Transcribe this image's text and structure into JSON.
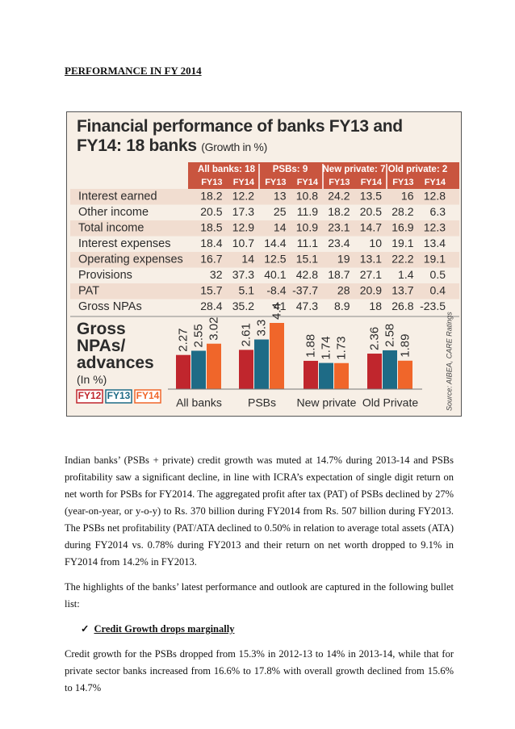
{
  "heading": "PERFORMANCE IN FY 2014",
  "infographic": {
    "title": "Financial performance of banks FY13 and FY14: 18 banks",
    "subtitle": "(Growth in %)",
    "groups": [
      "All banks: 18",
      "PSBs: 9",
      "New private: 7",
      "Old private: 2"
    ],
    "columns": [
      "FY13",
      "FY14"
    ],
    "rows": [
      {
        "label": "Interest earned",
        "values": [
          18.2,
          12.2,
          13,
          10.8,
          24.2,
          13.5,
          16,
          12.8
        ]
      },
      {
        "label": "Other income",
        "values": [
          20.5,
          17.3,
          25,
          11.9,
          18.2,
          20.5,
          28.2,
          6.3
        ]
      },
      {
        "label": "Total income",
        "values": [
          18.5,
          12.9,
          14,
          10.9,
          23.1,
          14.7,
          16.9,
          12.3
        ]
      },
      {
        "label": "Interest expenses",
        "values": [
          18.4,
          10.7,
          14.4,
          11.1,
          23.4,
          10,
          19.1,
          13.4
        ]
      },
      {
        "label": "Operating expenses",
        "values": [
          16.7,
          14,
          12.5,
          15.1,
          19,
          13.1,
          22.2,
          19.1
        ]
      },
      {
        "label": "Provisions",
        "values": [
          32,
          37.3,
          40.1,
          42.8,
          18.7,
          27.1,
          1.4,
          0.5
        ]
      },
      {
        "label": "PAT",
        "values": [
          15.7,
          5.1,
          -8.4,
          -37.7,
          28,
          20.9,
          13.7,
          0.4
        ]
      },
      {
        "label": "Gross NPAs",
        "values": [
          28.4,
          35.2,
          41,
          47.3,
          8.9,
          18,
          26.8,
          -23.5
        ]
      }
    ],
    "source": "Source: AIBEA, CARE Ratings"
  },
  "chart_data": {
    "type": "bar",
    "title": "Gross NPAs/ advances",
    "subtitle": "(In %)",
    "categories": [
      "All banks",
      "PSBs",
      "New private",
      "Old Private"
    ],
    "series": [
      {
        "name": "FY12",
        "color": "#c0262d",
        "values": [
          2.27,
          2.61,
          1.88,
          2.36
        ]
      },
      {
        "name": "FY13",
        "color": "#1e6b86",
        "values": [
          2.55,
          3.3,
          1.74,
          2.58
        ]
      },
      {
        "name": "FY14",
        "color": "#f0662a",
        "values": [
          3.02,
          4.4,
          1.73,
          1.89
        ]
      }
    ]
  },
  "body": {
    "paragraphs": [
      "Indian banks’ (PSBs + private) credit growth was muted at 14.7% during 2013-14 and PSBs profitability saw a significant decline, in line with ICRA’s expectation of single digit return on net worth for PSBs for FY2014. The aggregated profit after tax (PAT) of PSBs declined by 27% (year-on-year, or y-o-y) to Rs. 370 billion during FY2014 from Rs. 507 billion during FY2013. The PSBs net profitability (PAT/ATA declined to 0.50% in relation to average total assets (ATA) during FY2014 vs. 0.78% during FY2013 and their return on net worth dropped to 9.1% in FY2014 from 14.2% in FY2013.",
      "The highlights of the banks’ latest performance and outlook are captured in the following bullet list:"
    ],
    "bullet": "Credit Growth drops marginally",
    "closing": "Credit growth for the PSBs dropped from 15.3% in 2012-13 to 14% in 2013-14, while that for private sector banks increased from 16.6% to 17.8% with overall growth declined from 15.6% to 14.7%"
  }
}
